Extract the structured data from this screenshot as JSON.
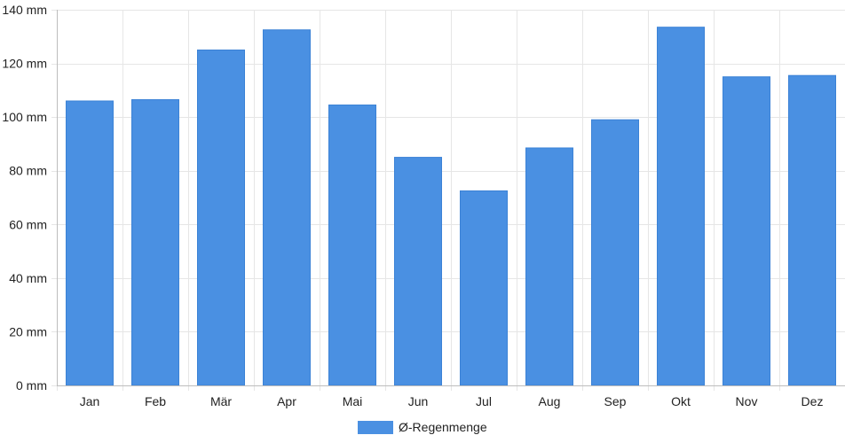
{
  "chart_data": {
    "type": "bar",
    "categories": [
      "Jan",
      "Feb",
      "Mär",
      "Apr",
      "Mai",
      "Jun",
      "Jul",
      "Aug",
      "Sep",
      "Okt",
      "Nov",
      "Dez"
    ],
    "series": [
      {
        "name": "Ø-Regenmenge",
        "values": [
          106,
          106.5,
          125,
          132.5,
          104.5,
          85,
          72.5,
          88.5,
          99,
          133.5,
          115,
          115.5
        ],
        "color": "#4a90e2"
      }
    ],
    "unit": "mm",
    "ylim": [
      0,
      140
    ],
    "yticks": [
      0,
      20,
      40,
      60,
      80,
      100,
      120,
      140
    ],
    "ytick_labels": [
      "0 mm",
      "20 mm",
      "40 mm",
      "60 mm",
      "80 mm",
      "100 mm",
      "120 mm",
      "140 mm"
    ],
    "grid": true,
    "legend_position": "bottom-center"
  }
}
